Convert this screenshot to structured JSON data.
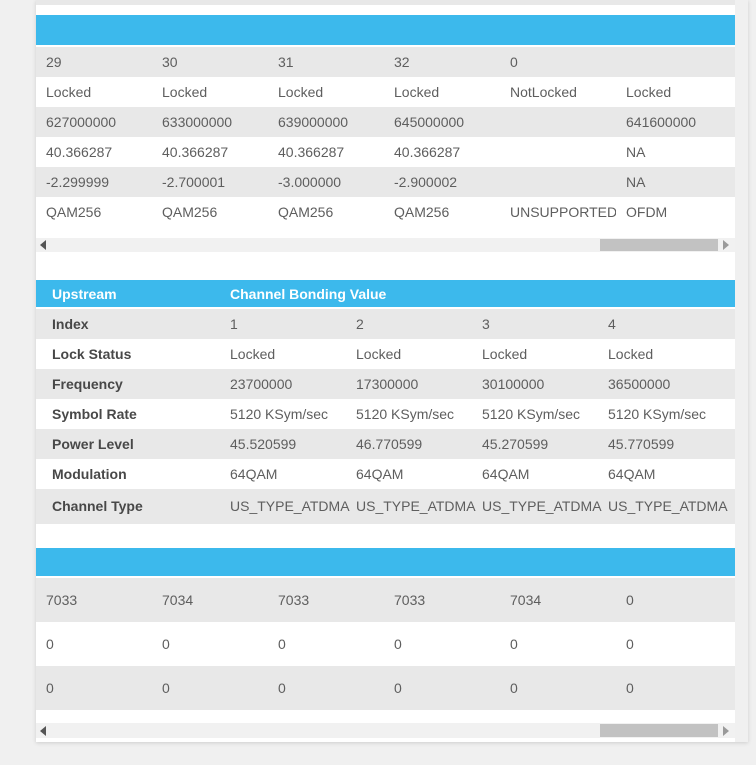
{
  "colors": {
    "accent": "#3cb9ec",
    "row_alt": "#e8e8e8",
    "page_bg": "#f0f0f0",
    "scroll_track": "#f1f1f1",
    "scroll_thumb": "#c2c2c2",
    "cell_text": "#5e5e5e",
    "label_text": "#484848"
  },
  "icons": {
    "scroll_left": "left-triangle",
    "scroll_right": "right-triangle"
  },
  "downstream_table": {
    "header_label": "",
    "rows": [
      [
        "29",
        "30",
        "31",
        "32",
        "0",
        ""
      ],
      [
        "Locked",
        "Locked",
        "Locked",
        "Locked",
        "NotLocked",
        "Locked"
      ],
      [
        "627000000",
        "633000000",
        "639000000",
        "645000000",
        "",
        "641600000"
      ],
      [
        "40.366287",
        "40.366287",
        "40.366287",
        "40.366287",
        "",
        "NA"
      ],
      [
        "-2.299999",
        "-2.700001",
        "-3.000000",
        "-2.900002",
        "",
        "NA"
      ],
      [
        "QAM256",
        "QAM256",
        "QAM256",
        "QAM256",
        "UNSUPPORTED",
        "OFDM"
      ]
    ]
  },
  "upstream_table": {
    "title": "Upstream",
    "subtitle": "Channel Bonding Value",
    "rows": [
      {
        "label": "Index",
        "values": [
          "1",
          "2",
          "3",
          "4"
        ]
      },
      {
        "label": "Lock Status",
        "values": [
          "Locked",
          "Locked",
          "Locked",
          "Locked"
        ]
      },
      {
        "label": "Frequency",
        "values": [
          "23700000",
          "17300000",
          "30100000",
          "36500000"
        ]
      },
      {
        "label": "Symbol Rate",
        "values": [
          "5120 KSym/sec",
          "5120 KSym/sec",
          "5120 KSym/sec",
          "5120 KSym/sec"
        ]
      },
      {
        "label": "Power Level",
        "values": [
          "45.520599",
          "46.770599",
          "45.270599",
          "45.770599"
        ]
      },
      {
        "label": "Modulation",
        "values": [
          "64QAM",
          "64QAM",
          "64QAM",
          "64QAM"
        ]
      },
      {
        "label": "Channel Type",
        "values": [
          "US_TYPE_ATDMA",
          "US_TYPE_ATDMA",
          "US_TYPE_ATDMA",
          "US_TYPE_ATDMA"
        ]
      }
    ]
  },
  "codeword_table": {
    "header_label": "",
    "rows": [
      [
        "7033",
        "7034",
        "7033",
        "7033",
        "7034",
        "0"
      ],
      [
        "0",
        "0",
        "0",
        "0",
        "0",
        "0"
      ],
      [
        "0",
        "0",
        "0",
        "0",
        "0",
        "0"
      ]
    ]
  }
}
